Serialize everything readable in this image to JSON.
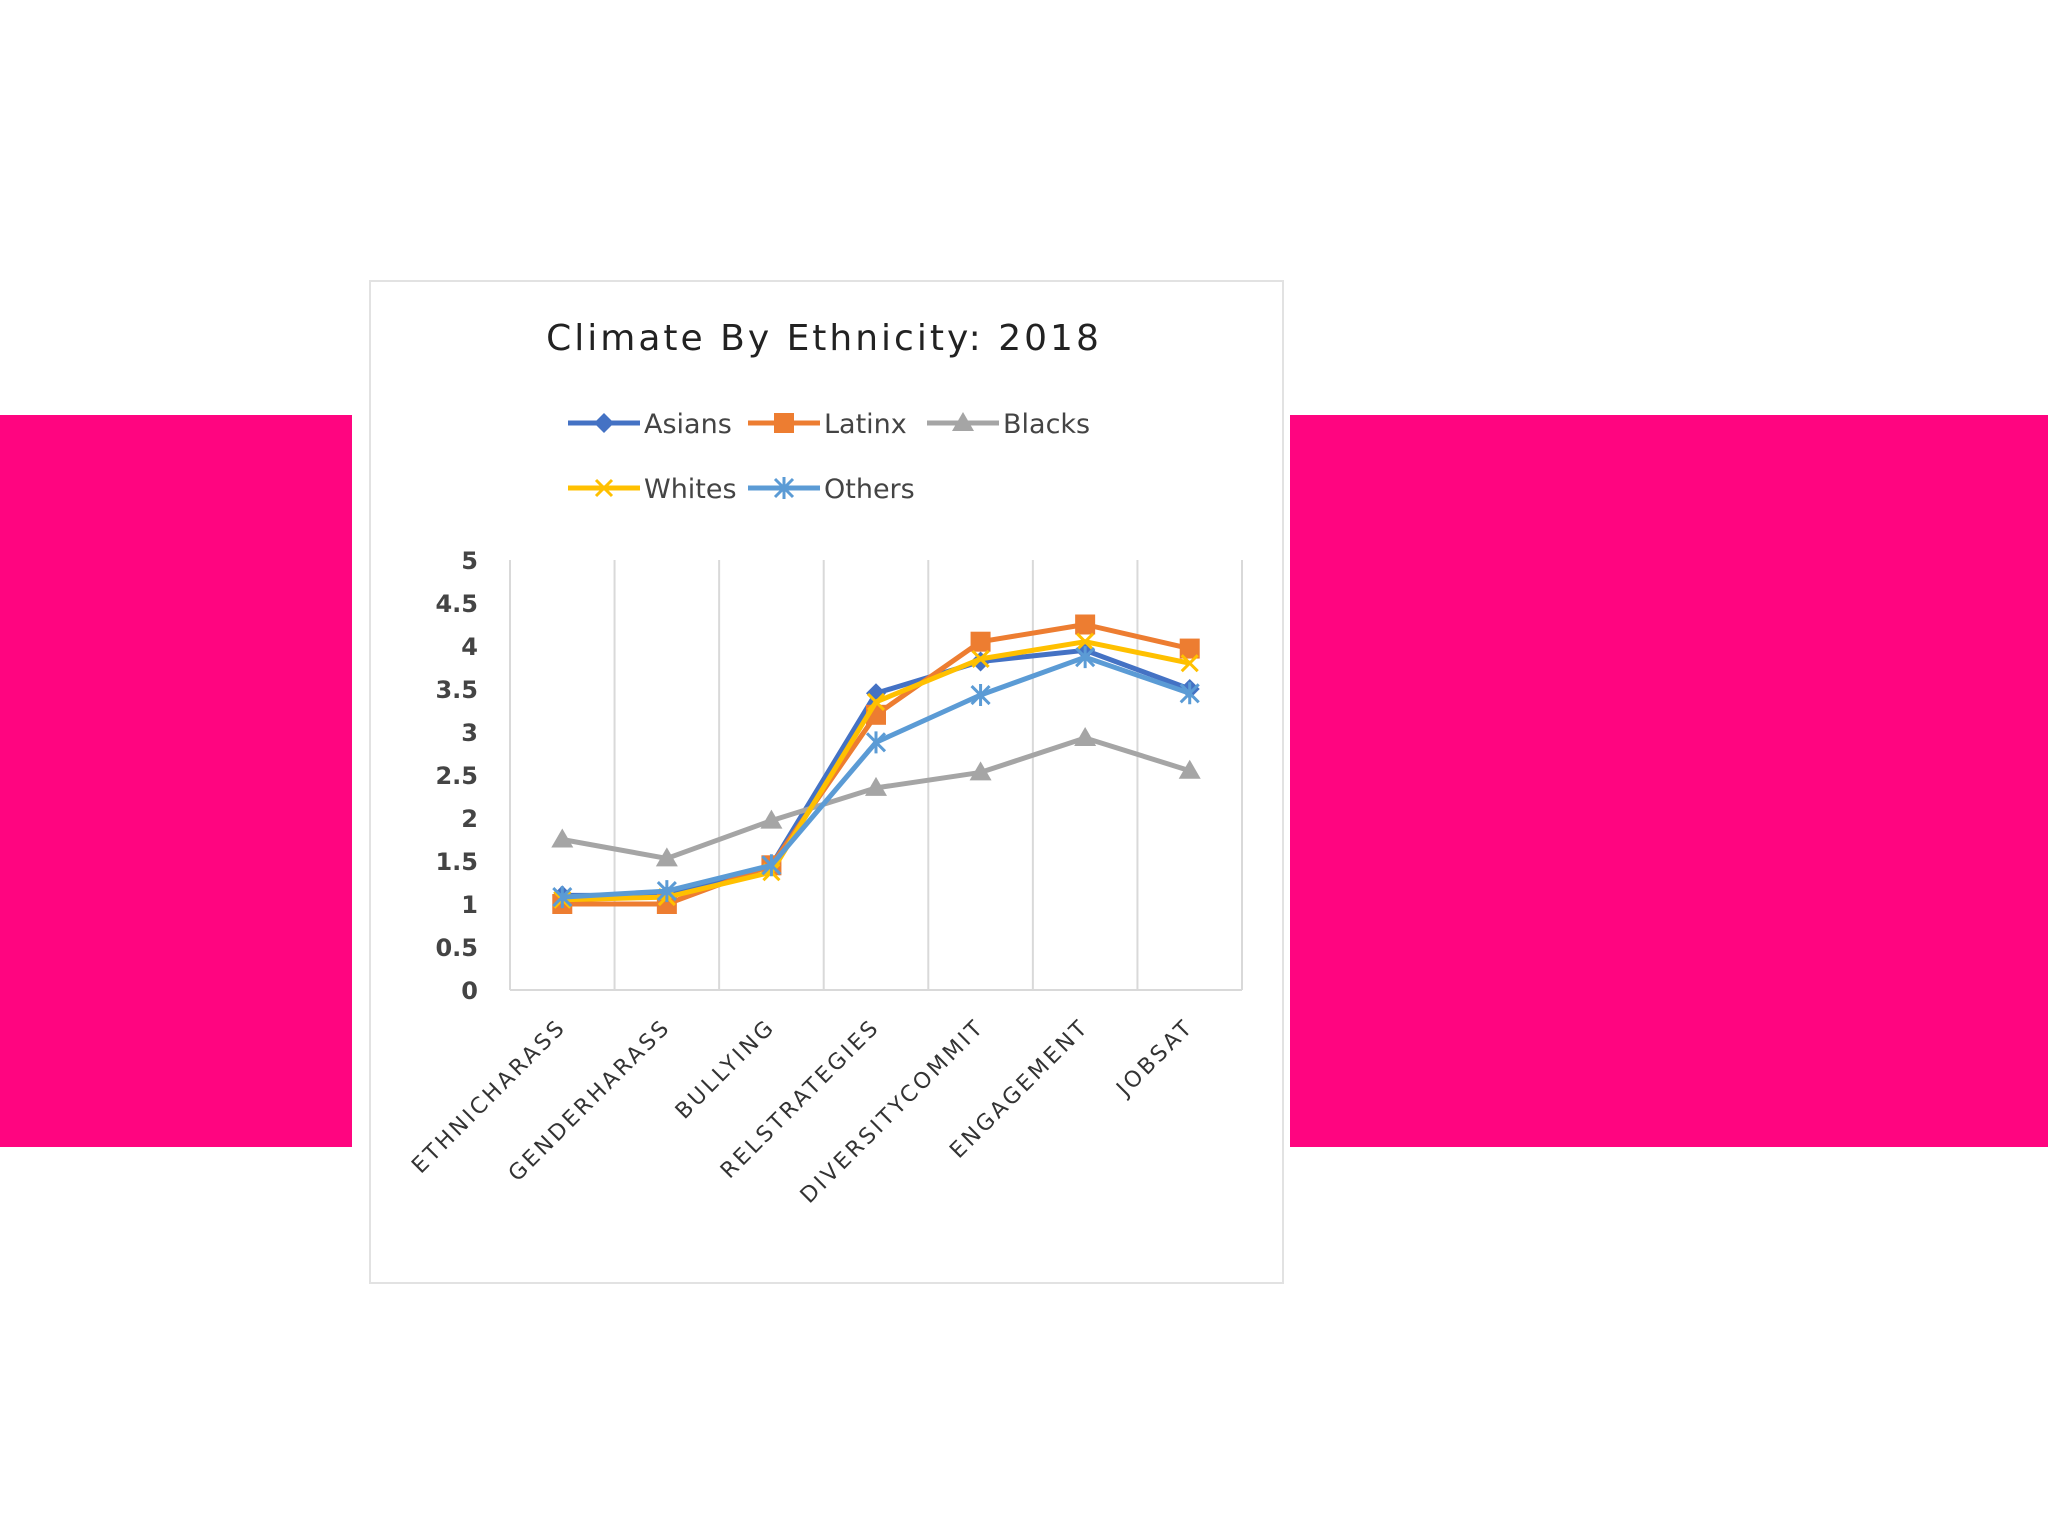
{
  "colors": {
    "band": "#ff0580",
    "card_border": "#e2e2e2"
  },
  "chart_data": {
    "type": "line",
    "title": "Climate By Ethnicity: 2018",
    "categories": [
      "ETHNICHARASS",
      "GENDERHARASS",
      "BULLYING",
      "RELSTRATEGIES",
      "DIVERSITYCOMMIT",
      "ENGAGEMENT",
      "JOBSAT"
    ],
    "ylim": [
      0,
      5
    ],
    "yticks": [
      "0",
      "0.5",
      "1",
      "1.5",
      "2",
      "2.5",
      "3",
      "3.5",
      "4",
      "4.5",
      "5"
    ],
    "grid": "vertical",
    "legend_position": "top",
    "series": [
      {
        "name": "Asians",
        "color": "#4472c4",
        "marker": "diamond",
        "values": [
          1.1,
          1.1,
          1.45,
          3.45,
          3.82,
          3.95,
          3.5
        ]
      },
      {
        "name": "Latinx",
        "color": "#ed7d31",
        "marker": "square",
        "values": [
          1.0,
          1.0,
          1.45,
          3.2,
          4.05,
          4.25,
          3.97
        ]
      },
      {
        "name": "Blacks",
        "color": "#a5a5a5",
        "marker": "triangle",
        "values": [
          1.75,
          1.53,
          1.97,
          2.35,
          2.53,
          2.93,
          2.55
        ]
      },
      {
        "name": "Whites",
        "color": "#ffc000",
        "marker": "x",
        "values": [
          1.05,
          1.08,
          1.37,
          3.35,
          3.85,
          4.05,
          3.8
        ]
      },
      {
        "name": "Others",
        "color": "#5b9bd5",
        "marker": "star",
        "values": [
          1.08,
          1.15,
          1.45,
          2.88,
          3.43,
          3.87,
          3.45
        ]
      }
    ]
  }
}
